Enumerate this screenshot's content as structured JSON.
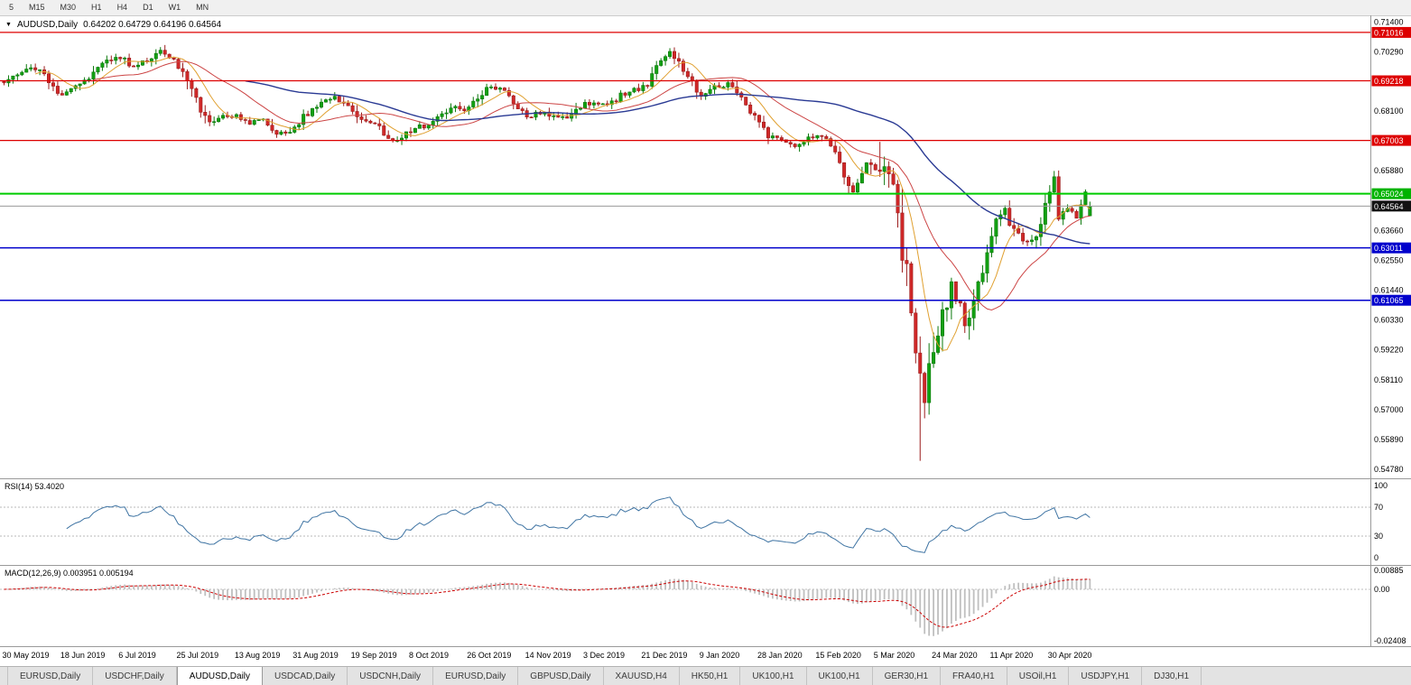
{
  "toolbar": {
    "timeframes": [
      "5",
      "M15",
      "M30",
      "H1",
      "H4",
      "D1",
      "W1",
      "MN"
    ]
  },
  "window": {
    "symbol": "AUDUSD,Daily",
    "ohlc": "0.64202 0.64729 0.64196 0.64564"
  },
  "price_axis": {
    "labels": [
      {
        "v": 0.714,
        "t": "0.71400"
      },
      {
        "v": 0.7029,
        "t": "0.70290"
      },
      {
        "v": 0.681,
        "t": "0.68100"
      },
      {
        "v": 0.6588,
        "t": "0.65880"
      },
      {
        "v": 0.6366,
        "t": "0.63660"
      },
      {
        "v": 0.6255,
        "t": "0.62550"
      },
      {
        "v": 0.6144,
        "t": "0.61440"
      },
      {
        "v": 0.6033,
        "t": "0.60330"
      },
      {
        "v": 0.5922,
        "t": "0.59220"
      },
      {
        "v": 0.5811,
        "t": "0.58110"
      },
      {
        "v": 0.57,
        "t": "0.57000"
      },
      {
        "v": 0.5589,
        "t": "0.55890"
      },
      {
        "v": 0.5478,
        "t": "0.54780"
      }
    ],
    "badges": [
      {
        "v": 0.71016,
        "t": "0.71016",
        "color": "#dd0000"
      },
      {
        "v": 0.69218,
        "t": "0.69218",
        "color": "#dd0000"
      },
      {
        "v": 0.67003,
        "t": "0.67003",
        "color": "#dd0000"
      },
      {
        "v": 0.65024,
        "t": "0.65024",
        "color": "#00b300"
      },
      {
        "v": 0.64564,
        "t": "0.64564",
        "color": "#111111"
      },
      {
        "v": 0.63011,
        "t": "0.63011",
        "color": "#0000cc"
      },
      {
        "v": 0.61065,
        "t": "0.61065",
        "color": "#0000cc"
      }
    ]
  },
  "chart_data": {
    "type": "candlestick",
    "symbol": "AUDUSD",
    "timeframe": "Daily",
    "title": "AUDUSD,Daily",
    "y_range": [
      0.5445,
      0.7165
    ],
    "n_candles": 244,
    "candle_step": 4.95,
    "last_candle": {
      "open": 0.64202,
      "high": 0.64729,
      "low": 0.64196,
      "close": 0.64564
    },
    "volatile_span": [
      194,
      216
    ],
    "waypoints": [
      [
        0,
        0.692
      ],
      [
        3,
        0.695
      ],
      [
        6,
        0.6978
      ],
      [
        9,
        0.6942
      ],
      [
        13,
        0.6868
      ],
      [
        16,
        0.6908
      ],
      [
        19,
        0.6938
      ],
      [
        22,
        0.6992
      ],
      [
        26,
        0.7012
      ],
      [
        29,
        0.6975
      ],
      [
        32,
        0.7
      ],
      [
        35,
        0.7038
      ],
      [
        38,
        0.7005
      ],
      [
        40,
        0.6952
      ],
      [
        43,
        0.6848
      ],
      [
        46,
        0.6762
      ],
      [
        49,
        0.6788
      ],
      [
        52,
        0.6792
      ],
      [
        55,
        0.6768
      ],
      [
        58,
        0.6782
      ],
      [
        61,
        0.6722
      ],
      [
        64,
        0.6732
      ],
      [
        67,
        0.6788
      ],
      [
        70,
        0.6832
      ],
      [
        74,
        0.6866
      ],
      [
        77,
        0.6828
      ],
      [
        80,
        0.6772
      ],
      [
        83,
        0.6756
      ],
      [
        86,
        0.6716
      ],
      [
        88,
        0.6702
      ],
      [
        91,
        0.6736
      ],
      [
        94,
        0.6756
      ],
      [
        97,
        0.6782
      ],
      [
        100,
        0.683
      ],
      [
        103,
        0.6816
      ],
      [
        106,
        0.6856
      ],
      [
        108,
        0.6898
      ],
      [
        111,
        0.6888
      ],
      [
        114,
        0.6846
      ],
      [
        117,
        0.6792
      ],
      [
        120,
        0.6802
      ],
      [
        123,
        0.6788
      ],
      [
        126,
        0.6776
      ],
      [
        129,
        0.683
      ],
      [
        132,
        0.6846
      ],
      [
        135,
        0.6826
      ],
      [
        138,
        0.6868
      ],
      [
        141,
        0.6886
      ],
      [
        144,
        0.6906
      ],
      [
        147,
        0.6998
      ],
      [
        149,
        0.7024
      ],
      [
        151,
        0.6986
      ],
      [
        153,
        0.6936
      ],
      [
        156,
        0.6866
      ],
      [
        159,
        0.6896
      ],
      [
        162,
        0.6906
      ],
      [
        165,
        0.6852
      ],
      [
        168,
        0.6792
      ],
      [
        171,
        0.6722
      ],
      [
        174,
        0.6696
      ],
      [
        177,
        0.6682
      ],
      [
        180,
        0.6712
      ],
      [
        183,
        0.6716
      ],
      [
        186,
        0.6672
      ],
      [
        188,
        0.6582
      ],
      [
        190,
        0.6516
      ],
      [
        193,
        0.6626
      ],
      [
        195,
        0.6612
      ],
      [
        197,
        0.6582
      ],
      [
        199,
        0.6492
      ],
      [
        201,
        0.6286
      ],
      [
        203,
        0.6106
      ],
      [
        205,
        0.5782
      ],
      [
        206,
        0.5746
      ],
      [
        207,
        0.5826
      ],
      [
        208,
        0.5962
      ],
      [
        210,
        0.6066
      ],
      [
        212,
        0.6172
      ],
      [
        214,
        0.6072
      ],
      [
        216,
        0.6016
      ],
      [
        218,
        0.6166
      ],
      [
        220,
        0.6302
      ],
      [
        222,
        0.6392
      ],
      [
        224,
        0.6446
      ],
      [
        226,
        0.6362
      ],
      [
        228,
        0.6336
      ],
      [
        230,
        0.6322
      ],
      [
        232,
        0.6396
      ],
      [
        234,
        0.6516
      ],
      [
        235,
        0.6546
      ],
      [
        236,
        0.6426
      ],
      [
        238,
        0.6456
      ],
      [
        240,
        0.6416
      ],
      [
        242,
        0.6506
      ],
      [
        243,
        0.64564
      ]
    ],
    "wick_overrides": [
      {
        "i": 196,
        "h": 0.6695
      },
      {
        "i": 205,
        "l": 0.551
      },
      {
        "i": 235,
        "h": 0.6568
      }
    ],
    "hlines": [
      {
        "value": 0.71016,
        "color": "#dd0000",
        "width": 1.2
      },
      {
        "value": 0.69218,
        "color": "#dd0000",
        "width": 1.2
      },
      {
        "value": 0.67003,
        "color": "#dd0000",
        "width": 1.2
      },
      {
        "value": 0.65024,
        "color": "#00cc00",
        "width": 2
      },
      {
        "value": 0.63011,
        "color": "#0000cc",
        "width": 1.5
      },
      {
        "value": 0.61065,
        "color": "#0000cc",
        "width": 1.5
      }
    ],
    "colors": {
      "up": "#12a112",
      "up_border": "#0b780b",
      "down": "#d02828",
      "down_border": "#9c1d1d",
      "price_line": "#9a9a9a",
      "axis_line": "#9a9a9a"
    },
    "ma": {
      "fast_period": 8,
      "fast_color": "#e0a030",
      "mid_period": 21,
      "mid_color": "#cc4444",
      "slow_period": 55,
      "slow_color": "#2a3a94"
    },
    "rsi": {
      "label": "RSI(14) 53.4020",
      "period": 14,
      "upper": 70,
      "lower": 30,
      "axis_labels": [
        100,
        70,
        30,
        0
      ],
      "color": "#3f74a3"
    },
    "macd": {
      "label": "MACD(12,26,9) 0.003951 0.005194",
      "fast": 12,
      "slow": 26,
      "signal": 9,
      "range": [
        -0.02408,
        0.00885
      ],
      "hist_color": "#bfbfbf",
      "signal_color": "#cc0000",
      "axis_labels": [
        {
          "v": 0.00885,
          "t": "0.00885"
        },
        {
          "v": 0,
          "t": "0.00"
        },
        {
          "v": -0.02408,
          "t": "-0.02408"
        }
      ]
    },
    "x_labels": [
      {
        "i": 0,
        "t": "30 May 2019"
      },
      {
        "i": 13,
        "t": "18 Jun 2019"
      },
      {
        "i": 26,
        "t": "6 Jul 2019"
      },
      {
        "i": 39,
        "t": "25 Jul 2019"
      },
      {
        "i": 52,
        "t": "13 Aug 2019"
      },
      {
        "i": 65,
        "t": "31 Aug 2019"
      },
      {
        "i": 78,
        "t": "19 Sep 2019"
      },
      {
        "i": 91,
        "t": "8 Oct 2019"
      },
      {
        "i": 104,
        "t": "26 Oct 2019"
      },
      {
        "i": 117,
        "t": "14 Nov 2019"
      },
      {
        "i": 130,
        "t": "3 Dec 2019"
      },
      {
        "i": 143,
        "t": "21 Dec 2019"
      },
      {
        "i": 156,
        "t": "9 Jan 2020"
      },
      {
        "i": 169,
        "t": "28 Jan 2020"
      },
      {
        "i": 182,
        "t": "15 Feb 2020"
      },
      {
        "i": 195,
        "t": "5 Mar 2020"
      },
      {
        "i": 208,
        "t": "24 Mar 2020"
      },
      {
        "i": 221,
        "t": "11 Apr 2020"
      },
      {
        "i": 234,
        "t": "30 Apr 2020"
      }
    ]
  },
  "tabs": {
    "items": [
      {
        "label": "EURUSD,Daily",
        "active": false
      },
      {
        "label": "USDCHF,Daily",
        "active": false
      },
      {
        "label": "AUDUSD,Daily",
        "active": true
      },
      {
        "label": "USDCAD,Daily",
        "active": false
      },
      {
        "label": "USDCNH,Daily",
        "active": false
      },
      {
        "label": "EURUSD,Daily",
        "active": false
      },
      {
        "label": "GBPUSD,Daily",
        "active": false
      },
      {
        "label": "XAUUSD,H4",
        "active": false
      },
      {
        "label": "HK50,H1",
        "active": false
      },
      {
        "label": "UK100,H1",
        "active": false
      },
      {
        "label": "UK100,H1",
        "active": false
      },
      {
        "label": "GER30,H1",
        "active": false
      },
      {
        "label": "FRA40,H1",
        "active": false
      },
      {
        "label": "USOil,H1",
        "active": false
      },
      {
        "label": "USDJPY,H1",
        "active": false
      },
      {
        "label": "DJ30,H1",
        "active": false
      }
    ]
  }
}
